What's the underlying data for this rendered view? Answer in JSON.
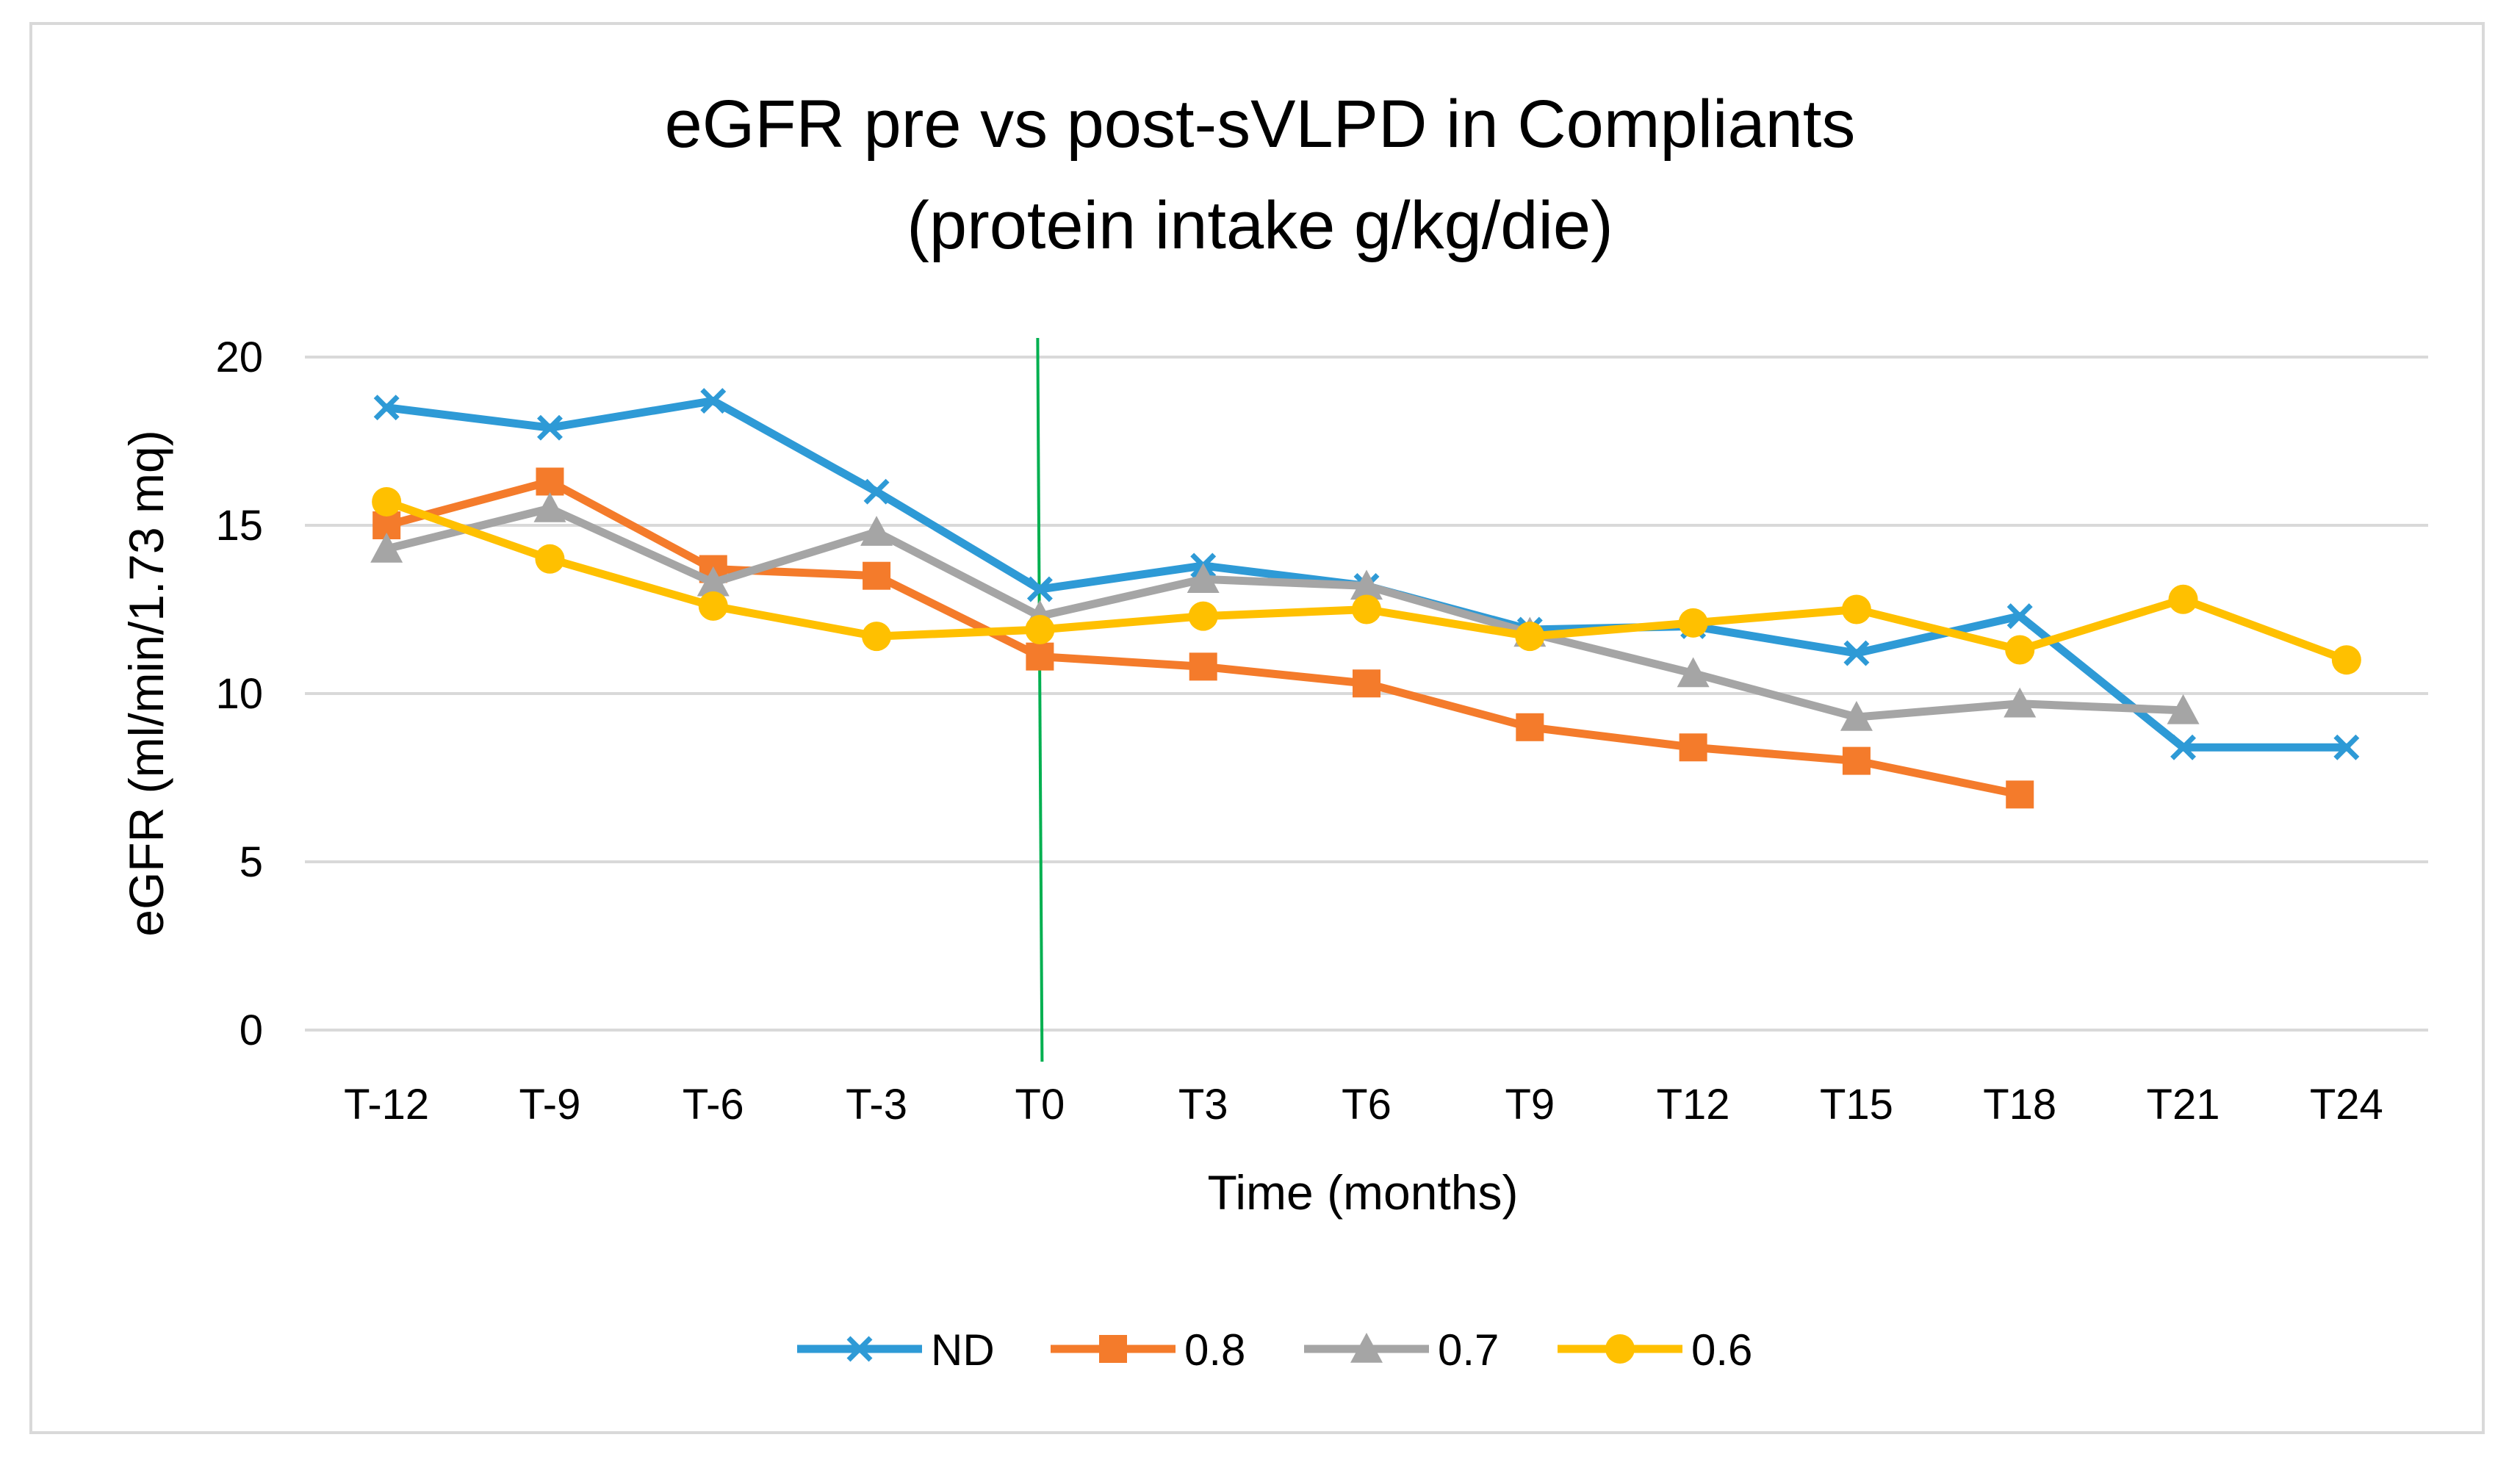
{
  "chart_data": {
    "type": "line",
    "title_lines": [
      "eGFR pre vs post-sVLPD in Compliants",
      "(protein intake g/kg/die)"
    ],
    "xlabel": "Time (months)",
    "ylabel": "eGFR (ml/min/1.73 mq)",
    "ylim": [
      0,
      20
    ],
    "yticks": [
      0,
      5,
      10,
      15,
      20
    ],
    "grid": true,
    "legend_position": "bottom",
    "categories": [
      "T-12",
      "T-9",
      "T-6",
      "T-3",
      "T0",
      "T3",
      "T6",
      "T9",
      "T12",
      "T15",
      "T18",
      "T21",
      "T24"
    ],
    "reference_line": {
      "category": "T0",
      "color": "#00b050"
    },
    "series": [
      {
        "name": "ND",
        "color": "#2e9ad6",
        "marker": "x",
        "values": [
          18.5,
          17.9,
          18.7,
          16.0,
          13.1,
          13.8,
          13.2,
          11.9,
          12.0,
          11.2,
          12.3,
          8.4,
          8.4
        ]
      },
      {
        "name": "0.8",
        "color": "#f47b2b",
        "marker": "square",
        "values": [
          15.0,
          16.3,
          13.7,
          13.5,
          11.1,
          10.8,
          10.3,
          9.0,
          8.4,
          8.0,
          7.0,
          null,
          null
        ]
      },
      {
        "name": "0.7",
        "color": "#a5a5a5",
        "marker": "triangle",
        "values": [
          14.3,
          15.5,
          13.3,
          14.8,
          12.3,
          13.4,
          13.2,
          11.8,
          10.6,
          9.3,
          9.7,
          9.5,
          null
        ]
      },
      {
        "name": "0.6",
        "color": "#ffc000",
        "marker": "circle",
        "values": [
          15.7,
          14.0,
          12.6,
          11.7,
          11.9,
          12.3,
          12.5,
          11.7,
          12.1,
          12.5,
          11.3,
          12.8,
          11.0
        ]
      }
    ]
  }
}
